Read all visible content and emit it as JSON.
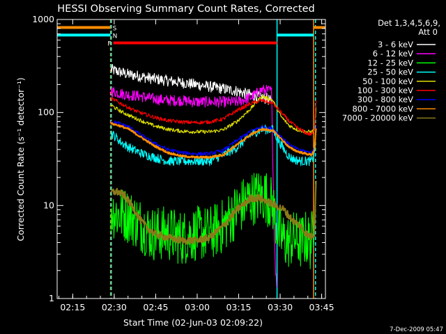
{
  "chart_data": {
    "type": "line",
    "title": "HESSI Observing Summary Count Rates, Corrected",
    "xlabel": "Start Time (02-Jun-03 02:09:22)",
    "ylabel": "Corrected Count Rate (s⁻¹ detector⁻¹)",
    "footer": "7-Dec-2009 05:47",
    "legend_title": [
      "Det 1,3,4,5,6,9,",
      "Att 0"
    ],
    "legend_position": "right",
    "x_unit": "minutes since 02:09:22",
    "xlim": [
      0,
      97
    ],
    "ylim": [
      1,
      1000
    ],
    "yscale": "log",
    "xticks": [
      {
        "t": 5.63,
        "label": "02:15"
      },
      {
        "t": 20.63,
        "label": "02:30"
      },
      {
        "t": 35.63,
        "label": "02:45"
      },
      {
        "t": 50.63,
        "label": "03:00"
      },
      {
        "t": 65.63,
        "label": "03:15"
      },
      {
        "t": 80.63,
        "label": "03:30"
      },
      {
        "t": 95.63,
        "label": "03:45"
      }
    ],
    "yticks": [
      {
        "v": 1,
        "label": "1"
      },
      {
        "v": 10,
        "label": "10"
      },
      {
        "v": 100,
        "label": "100"
      },
      {
        "v": 1000,
        "label": "1000"
      }
    ],
    "series": [
      {
        "name": "3 - 6 keV",
        "color": "#ffffff",
        "noise": 0.06,
        "x": [
          19.5,
          25,
          35,
          45,
          55,
          60,
          65,
          68,
          72,
          76,
          77.5
        ],
        "y": [
          290,
          260,
          230,
          210,
          190,
          180,
          170,
          160,
          150,
          140,
          130
        ]
      },
      {
        "name": "6 - 12 keV",
        "color": "#ff00ff",
        "noise": 0.06,
        "x": [
          19.5,
          25,
          30,
          35,
          40,
          45,
          50,
          55,
          60,
          65,
          70,
          74,
          77.5,
          78.5,
          79,
          79.5
        ],
        "y": [
          170,
          155,
          150,
          140,
          135,
          135,
          130,
          130,
          130,
          130,
          145,
          175,
          170,
          5,
          2,
          1.2
        ]
      },
      {
        "name": "12 - 25 keV",
        "color": "#00ff00",
        "noise": 0.3,
        "x": [
          19.5,
          22,
          25,
          28,
          31,
          34,
          37,
          40,
          45,
          50,
          55,
          60,
          65,
          70,
          75,
          78,
          80,
          83,
          86,
          88,
          90,
          91.5,
          92.5,
          93.5
        ],
        "y": [
          9,
          8,
          8,
          7,
          6,
          5,
          5,
          5,
          4.5,
          5,
          5,
          6,
          9,
          12,
          13,
          10,
          5,
          4,
          4.5,
          4,
          4.5,
          4,
          5,
          20
        ]
      },
      {
        "name": "25 - 50 keV",
        "color": "#00ffff",
        "noise": 0.05,
        "x": [
          19.5,
          21,
          23,
          26,
          29,
          32,
          35,
          40,
          45,
          50,
          55,
          60,
          65,
          70,
          74,
          78,
          80,
          82,
          84,
          86,
          88,
          90,
          92,
          93,
          93.6
        ],
        "y": [
          60,
          55,
          48,
          42,
          38,
          35,
          33,
          30,
          30,
          30,
          30,
          35,
          42,
          58,
          66,
          65,
          50,
          40,
          33,
          31,
          30,
          30,
          30,
          35,
          60
        ]
      },
      {
        "name": "50 - 100 keV",
        "color": "#e0e000",
        "noise": 0.02,
        "x": [
          19.5,
          21,
          23,
          26,
          29,
          32,
          35,
          40,
          45,
          50,
          55,
          60,
          65,
          70,
          74,
          78,
          81,
          84,
          87,
          90,
          92,
          93,
          93.6
        ],
        "y": [
          120,
          112,
          103,
          93,
          85,
          78,
          72,
          66,
          63,
          62,
          62,
          65,
          80,
          110,
          150,
          135,
          90,
          72,
          65,
          62,
          62,
          65,
          110
        ]
      },
      {
        "name": "100 - 300 keV",
        "color": "#ff0000",
        "noise": 0.02,
        "x": [
          19.5,
          21,
          23,
          26,
          29,
          32,
          35,
          40,
          45,
          50,
          55,
          60,
          65,
          70,
          74,
          78,
          81,
          84,
          87,
          90,
          92,
          93,
          93.6
        ],
        "y": [
          140,
          135,
          125,
          112,
          102,
          95,
          89,
          82,
          79,
          78,
          79,
          85,
          105,
          125,
          135,
          125,
          100,
          80,
          68,
          60,
          58,
          65,
          140
        ]
      },
      {
        "name": "300 - 800 keV",
        "color": "#0000ff",
        "noise": 0.02,
        "x": [
          19.5,
          22,
          26,
          30,
          35,
          40,
          45,
          50,
          55,
          60,
          65,
          70,
          74,
          78,
          81,
          84,
          87,
          90,
          92,
          93,
          93.6
        ],
        "y": [
          80,
          77,
          70,
          58,
          47,
          40,
          37,
          36,
          36,
          39,
          50,
          63,
          70,
          67,
          55,
          45,
          40,
          38,
          37,
          42,
          70
        ]
      },
      {
        "name": "800 - 7000 keV",
        "color": "#ff8c00",
        "noise": 0.01,
        "width": 2.2,
        "x": [
          19.5,
          22,
          26,
          30,
          35,
          40,
          45,
          50,
          55,
          60,
          65,
          70,
          74,
          78,
          81,
          84,
          87,
          90,
          92,
          93,
          93.6
        ],
        "y": [
          76,
          73,
          66,
          55,
          44,
          37,
          34,
          33,
          33,
          35,
          45,
          58,
          66,
          64,
          52,
          42,
          38,
          36,
          35,
          40,
          66
        ]
      },
      {
        "name": "7000 - 20000 keV",
        "color": "#8b7a1a",
        "noise": 0.04,
        "width": 2.2,
        "x": [
          19.5,
          22,
          24,
          26,
          28,
          30,
          32,
          35,
          40,
          45,
          50,
          55,
          60,
          65,
          70,
          73,
          76,
          79,
          82,
          85,
          88,
          90,
          92,
          93,
          93.6
        ],
        "y": [
          14,
          14,
          13,
          11,
          9,
          7,
          6,
          5,
          4.5,
          4.2,
          4.2,
          4.5,
          6,
          9,
          12,
          12,
          11,
          10,
          9,
          7,
          6,
          5,
          4.6,
          5,
          20
        ]
      }
    ],
    "status_bars": [
      {
        "label": "S",
        "color": "#ff8c00",
        "y": 820,
        "segments": [
          [
            0,
            19.3
          ],
          [
            92.7,
            97
          ]
        ]
      },
      {
        "label": "N",
        "color": "#00ffff",
        "y": 680,
        "segments": [
          [
            0,
            19.3
          ],
          [
            79.5,
            92.7
          ]
        ]
      },
      {
        "label": "F",
        "color": "#ff0000",
        "y": 560,
        "segments": [
          [
            20.3,
            79.5
          ]
        ]
      }
    ],
    "vertical_markers": [
      {
        "t": 19.3,
        "color": "#ff8c00",
        "dash": true
      },
      {
        "t": 19.6,
        "color": "#00ffff",
        "dash": true
      },
      {
        "t": 79.5,
        "color": "#00ffff",
        "dash": false
      },
      {
        "t": 92.7,
        "color": "#ff8c00",
        "dash": false
      },
      {
        "t": 93.4,
        "color": "#00ffff",
        "dash": true
      }
    ]
  }
}
